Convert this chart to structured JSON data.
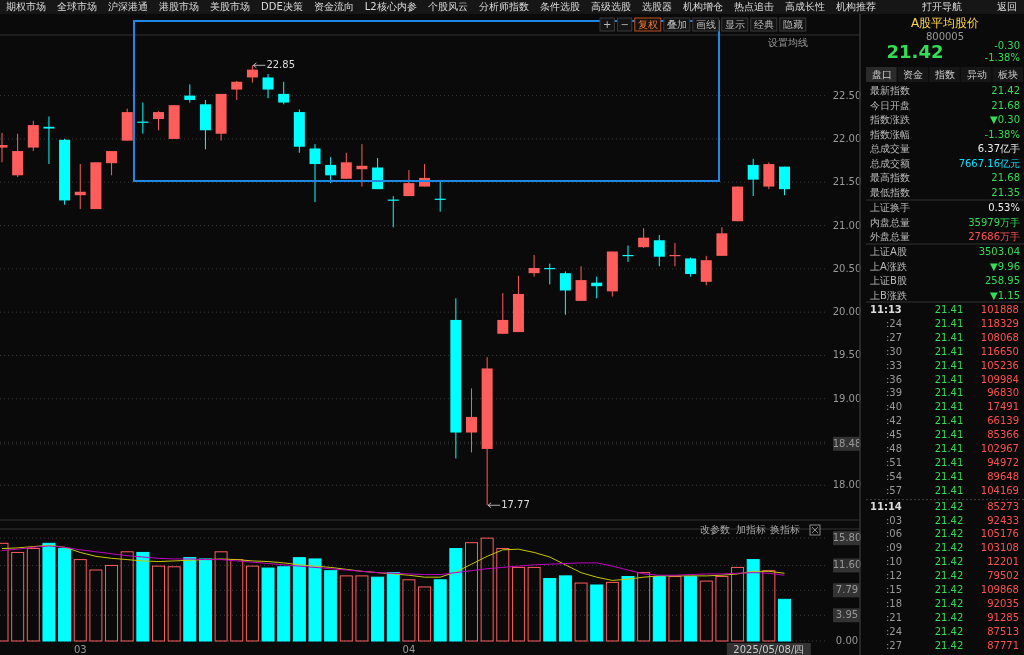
{
  "chart_data": [
    {
      "type": "candlestick",
      "categories": [
        null,
        null,
        null,
        null,
        null,
        null,
        null,
        null,
        null,
        null,
        null,
        null,
        null,
        null,
        null,
        null,
        null,
        null,
        null,
        null,
        null,
        null,
        null,
        null,
        null,
        null,
        null,
        null,
        null,
        null,
        null,
        null,
        null,
        null,
        null,
        null,
        null,
        null,
        null,
        null,
        null,
        null,
        null,
        null,
        null,
        null,
        null,
        null,
        null,
        null,
        null
      ],
      "ohlc": [
        [
          21.9,
          22.07,
          21.73,
          21.93
        ],
        [
          21.58,
          22.06,
          21.56,
          21.86
        ],
        [
          21.9,
          22.21,
          21.86,
          22.16
        ],
        [
          22.14,
          22.26,
          21.71,
          22.12
        ],
        [
          21.99,
          22.0,
          21.24,
          21.29
        ],
        [
          21.35,
          21.71,
          21.19,
          21.39
        ],
        [
          21.19,
          21.73,
          21.19,
          21.73
        ],
        [
          21.72,
          21.86,
          21.58,
          21.86
        ],
        [
          21.98,
          22.35,
          21.98,
          22.31
        ],
        [
          22.2,
          22.42,
          22.06,
          22.19
        ],
        [
          22.23,
          22.32,
          22.1,
          22.31
        ],
        [
          22.0,
          22.39,
          22.0,
          22.39
        ],
        [
          22.5,
          22.63,
          22.42,
          22.45
        ],
        [
          22.4,
          22.45,
          21.88,
          22.1
        ],
        [
          22.06,
          22.52,
          21.98,
          22.52
        ],
        [
          22.57,
          22.67,
          22.45,
          22.66
        ],
        [
          22.71,
          22.85,
          22.65,
          22.8
        ],
        [
          22.71,
          22.75,
          22.47,
          22.57
        ],
        [
          22.52,
          22.66,
          22.4,
          22.42
        ],
        [
          22.31,
          22.34,
          21.84,
          21.91
        ],
        [
          21.89,
          21.94,
          21.27,
          21.71
        ],
        [
          21.7,
          21.79,
          21.49,
          21.58
        ],
        [
          21.54,
          21.84,
          21.54,
          21.73
        ],
        [
          21.65,
          21.94,
          21.45,
          21.69
        ],
        [
          21.67,
          21.78,
          21.42,
          21.42
        ],
        [
          21.3,
          21.34,
          20.98,
          21.29
        ],
        [
          21.34,
          21.64,
          21.34,
          21.49
        ],
        [
          21.45,
          21.71,
          21.45,
          21.55
        ],
        [
          21.31,
          21.52,
          21.16,
          21.3
        ],
        [
          19.91,
          20.16,
          18.31,
          18.61
        ],
        [
          18.61,
          19.12,
          18.38,
          18.79
        ],
        [
          18.42,
          19.48,
          17.77,
          19.35
        ],
        [
          19.75,
          20.22,
          19.75,
          19.91
        ],
        [
          19.77,
          20.42,
          19.77,
          20.21
        ],
        [
          20.45,
          20.66,
          20.41,
          20.51
        ],
        [
          20.51,
          20.56,
          20.32,
          20.5
        ],
        [
          20.45,
          20.47,
          19.97,
          20.25
        ],
        [
          20.13,
          20.53,
          20.13,
          20.37
        ],
        [
          20.34,
          20.41,
          20.16,
          20.3
        ],
        [
          20.24,
          20.7,
          20.18,
          20.7
        ],
        [
          20.66,
          20.77,
          20.58,
          20.65
        ],
        [
          20.75,
          20.97,
          20.74,
          20.86
        ],
        [
          20.83,
          20.89,
          20.53,
          20.64
        ],
        [
          20.65,
          20.8,
          20.53,
          20.66
        ],
        [
          20.62,
          20.63,
          20.41,
          20.44
        ],
        [
          20.35,
          20.65,
          20.31,
          20.6
        ],
        [
          20.65,
          20.98,
          20.65,
          20.91
        ],
        [
          21.05,
          21.45,
          21.05,
          21.45
        ],
        [
          21.7,
          21.77,
          21.34,
          21.53
        ],
        [
          21.45,
          21.73,
          21.42,
          21.71
        ],
        [
          21.68,
          21.68,
          21.35,
          21.42
        ]
      ],
      "colors": [
        "#ff5c5c",
        "#ff5c5c",
        "#ff5c5c",
        "#00ffff",
        "#00ffff",
        "#ff5c5c",
        "#ff5c5c",
        "#ff5c5c",
        "#ff5c5c",
        "#00ffff",
        "#ff5c5c",
        "#ff5c5c",
        "#00ffff",
        "#00ffff",
        "#ff5c5c",
        "#ff5c5c",
        "#ff5c5c",
        "#00ffff",
        "#00ffff",
        "#00ffff",
        "#00ffff",
        "#00ffff",
        "#ff5c5c",
        "#ff5c5c",
        "#00ffff",
        "#00ffff",
        "#ff5c5c",
        "#ff5c5c",
        "#00ffff",
        "#00ffff",
        "#ff5c5c",
        "#ff5c5c",
        "#ff5c5c",
        "#ff5c5c",
        "#ff5c5c",
        "#00ffff",
        "#00ffff",
        "#ff5c5c",
        "#00ffff",
        "#ff5c5c",
        "#00ffff",
        "#ff5c5c",
        "#00ffff",
        "#ff5c5c",
        "#00ffff",
        "#ff5c5c",
        "#ff5c5c",
        "#ff5c5c",
        "#00ffff",
        "#ff5c5c",
        "#00ffff"
      ],
      "ylim": [
        17.6,
        23.2
      ],
      "yticks": [
        {
          "value": 18.0,
          "label": "18.00"
        },
        {
          "value": 18.48,
          "label": "18.48"
        },
        {
          "value": 18.5,
          "label": null
        },
        {
          "value": 19.0,
          "label": "19.00"
        },
        {
          "value": 19.5,
          "label": "19.50"
        },
        {
          "value": 20.0,
          "label": "20.00"
        },
        {
          "value": 20.5,
          "label": "20.50"
        },
        {
          "value": 21.0,
          "label": "21.00"
        },
        {
          "value": 21.5,
          "label": "21.50"
        },
        {
          "value": 22.0,
          "label": "22.00"
        },
        {
          "value": 22.5,
          "label": "22.50"
        }
      ],
      "grid": "y",
      "tick_labels": "y",
      "annotations": [
        "22.85",
        "17.77"
      ]
    },
    {
      "type": "bar",
      "categories": [
        null,
        null,
        null,
        null,
        null,
        "03",
        null,
        null,
        null,
        null,
        null,
        null,
        null,
        null,
        null,
        null,
        null,
        null,
        null,
        null,
        null,
        null,
        null,
        null,
        null,
        null,
        "04",
        null,
        null,
        null,
        null,
        null,
        null,
        null,
        null,
        null,
        null,
        null,
        null,
        null,
        null,
        null,
        null,
        null,
        null,
        null,
        null,
        null,
        null,
        "2025/05/08/四",
        null
      ],
      "series": [
        {
          "type": "bar",
          "colors": [
            "#ff5c5c",
            "#ff5c5c",
            "#ff5c5c",
            "#00ffff",
            "#00ffff",
            "#ff5c5c",
            "#ff5c5c",
            "#ff5c5c",
            "#ff5c5c",
            "#00ffff",
            "#ff5c5c",
            "#ff5c5c",
            "#00ffff",
            "#00ffff",
            "#ff5c5c",
            "#ff5c5c",
            "#ff5c5c",
            "#00ffff",
            "#00ffff",
            "#00ffff",
            "#00ffff",
            "#00ffff",
            "#ff5c5c",
            "#ff5c5c",
            "#00ffff",
            "#00ffff",
            "#ff5c5c",
            "#ff5c5c",
            "#00ffff",
            "#00ffff",
            "#ff5c5c",
            "#ff5c5c",
            "#ff5c5c",
            "#ff5c5c",
            "#ff5c5c",
            "#00ffff",
            "#00ffff",
            "#ff5c5c",
            "#00ffff",
            "#ff5c5c",
            "#00ffff",
            "#ff5c5c",
            "#00ffff",
            "#ff5c5c",
            "#00ffff",
            "#ff5c5c",
            "#ff5c5c",
            "#ff5c5c",
            "#00ffff",
            "#ff5c5c",
            "#00ffff"
          ],
          "values": [
            15.0,
            13.6,
            14.2,
            15.0,
            14.2,
            12.5,
            10.9,
            11.6,
            13.7,
            13.6,
            11.5,
            11.4,
            12.8,
            12.6,
            13.7,
            12.5,
            11.5,
            11.2,
            11.4,
            12.8,
            12.6,
            10.8,
            10.0,
            10.0,
            9.8,
            10.5,
            9.4,
            8.3,
            9.4,
            14.2,
            15.1,
            15.8,
            14.2,
            11.3,
            11.3,
            9.6,
            10.0,
            8.9,
            8.6,
            9.0,
            9.9,
            10.5,
            9.9,
            9.9,
            9.9,
            9.2,
            9.9,
            11.3,
            12.5,
            10.8,
            6.4
          ]
        },
        {
          "type": "line",
          "color": "#c8c800",
          "values": [
            14.2,
            14.3,
            14.5,
            14.7,
            14.4,
            13.6,
            13.0,
            12.7,
            12.5,
            12.3,
            12.2,
            12.3,
            12.4,
            12.5,
            12.6,
            12.5,
            12.3,
            12.2,
            12.0,
            11.7,
            11.5,
            11.3,
            11.0,
            10.7,
            10.5,
            10.3,
            10.1,
            9.8,
            9.8,
            10.6,
            11.8,
            13.0,
            14.0,
            14.1,
            13.6,
            12.9,
            11.7,
            10.5,
            9.8,
            9.3,
            9.5,
            9.8,
            10.0,
            10.0,
            10.0,
            10.0,
            10.1,
            10.3,
            10.7,
            10.7,
            10.4
          ]
        },
        {
          "type": "line",
          "color": "#c000c0",
          "values": [
            13.9,
            14.1,
            14.4,
            14.6,
            14.4,
            14.0,
            13.7,
            13.4,
            13.1,
            12.9,
            12.7,
            12.6,
            12.6,
            12.5,
            12.5,
            12.3,
            12.1,
            11.9,
            11.7,
            11.5,
            11.3,
            11.1,
            10.9,
            10.7,
            10.5,
            10.4,
            10.3,
            10.2,
            10.2,
            10.5,
            10.8,
            11.1,
            11.3,
            11.5,
            11.7,
            11.8,
            11.9,
            12.0,
            12.0,
            11.5,
            10.9,
            10.3,
            10.1,
            10.1,
            10.2,
            10.3,
            10.3,
            10.4,
            10.5,
            10.4,
            10.1
          ]
        }
      ],
      "ylim": [
        0,
        17.2
      ],
      "yticks": [
        {
          "value": 0,
          "label": "0.00"
        },
        {
          "value": 3.95,
          "label": "3.95"
        },
        {
          "value": 7.79,
          "label": "7.79"
        },
        {
          "value": 11.6,
          "label": "11.60"
        },
        {
          "value": 15.8,
          "label": "15.80"
        }
      ],
      "grid": "y",
      "annotations": [
        "改参数",
        "加指标",
        "换指标"
      ]
    },
    {
      "type": "other",
      "annotations": [
        "期权市场",
        "全球市场",
        "沪深港通",
        "港股市场",
        "美股市场",
        "DDE决策",
        "资金流向",
        "L2核心内参",
        "个股风云",
        "分析师指数",
        "条件选股",
        "高级选股",
        "选股器",
        "机构增仓",
        "热点追击",
        "高成长性",
        "机构推荐",
        "打开导航",
        "返回",
        "+",
        "−",
        "复权",
        "叠加",
        "画线",
        "显示",
        "经典",
        "隐藏",
        "设置均线"
      ]
    },
    {
      "type": "other",
      "annotations": [
        "A股平均股价",
        "800005",
        "21.42",
        "-0.30",
        "-1.38%",
        "盘口",
        "资金",
        "指数",
        "异动",
        "板块",
        "最新指数",
        "21.42",
        "今日开盘",
        "21.68",
        "指数涨跌",
        "▼0.30",
        "指数涨幅",
        "-1.38%",
        "总成交量",
        "6.37亿手",
        "总成交额",
        "7667.16亿元",
        "最高指数",
        "21.68",
        "最低指数",
        "21.35",
        "上证换手",
        "0.53%",
        "内盘总量",
        "35979万手",
        "外盘总量",
        "27686万手",
        "上证A股",
        "3503.04",
        "上A涨跌",
        "▼9.96",
        "上证B股",
        "258.95",
        "上B涨跌",
        "▼1.15",
        "11:13",
        "21.41",
        "101888",
        ":24",
        "21.41",
        "118329",
        ":27",
        "21.41",
        "108068",
        ":30",
        "21.41",
        "116650",
        ":33",
        "21.41",
        "105236",
        ":36",
        "21.41",
        "109984",
        ":39",
        "21.41",
        "96830",
        ":40",
        "21.41",
        "17491",
        ":42",
        "21.41",
        "66139",
        ":45",
        "21.41",
        "85366",
        ":48",
        "21.41",
        "102967",
        ":51",
        "21.41",
        "94972",
        ":54",
        "21.41",
        "89648",
        ":57",
        "21.41",
        "104169",
        "11:14",
        "21.42",
        "85273",
        ":03",
        "21.42",
        "92433",
        ":06",
        "21.42",
        "105176",
        ":09",
        "21.42",
        "103108",
        ":10",
        "21.42",
        "12201",
        ":12",
        "21.42",
        "79502",
        ":15",
        "21.42",
        "109868",
        ":18",
        "21.42",
        "92035",
        ":21",
        "21.42",
        "91285",
        ":24",
        "21.42",
        "87513",
        ":27",
        "21.42",
        "87771"
      ]
    }
  ]
}
